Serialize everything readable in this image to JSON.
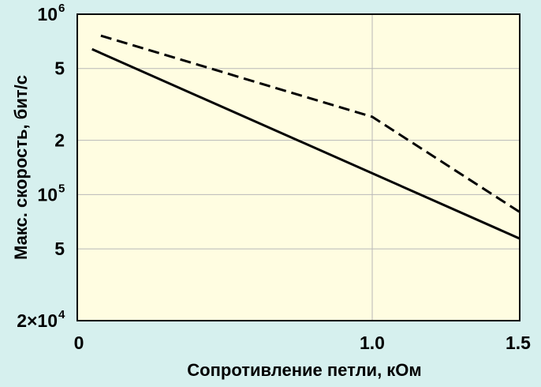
{
  "colors": {
    "background": "#d6f0ee",
    "plot_background": "#fffde1",
    "line": "#000000",
    "grid": "#b8b8b8"
  },
  "chart_data": {
    "type": "line",
    "title": "",
    "xlabel": "Сопротивление петли, кОм",
    "ylabel": "Макс. скорость, бит/с",
    "xlim": [
      0,
      1.5
    ],
    "ylim": [
      20000,
      1000000
    ],
    "y_scale": "log",
    "grid": true,
    "x_ticks": [
      {
        "value": 0,
        "label": "0"
      },
      {
        "value": 1.0,
        "label": "1.0"
      },
      {
        "value": 1.5,
        "label": "1.5"
      }
    ],
    "y_ticks": [
      {
        "value": 1000000,
        "base": "10",
        "exp": "6"
      },
      {
        "value": 500000,
        "base": "5",
        "exp": ""
      },
      {
        "value": 200000,
        "base": "2",
        "exp": ""
      },
      {
        "value": 100000,
        "base": "10",
        "exp": "5"
      },
      {
        "value": 50000,
        "base": "5",
        "exp": ""
      },
      {
        "value": 20000,
        "base": "2×10",
        "exp": "4"
      }
    ],
    "series": [
      {
        "style": "solid",
        "x": [
          0.05,
          1.5
        ],
        "y": [
          640000,
          57000
        ]
      },
      {
        "style": "dashed",
        "x": [
          0.08,
          1.0,
          1.5
        ],
        "y": [
          760000,
          270000,
          80000
        ]
      }
    ]
  }
}
